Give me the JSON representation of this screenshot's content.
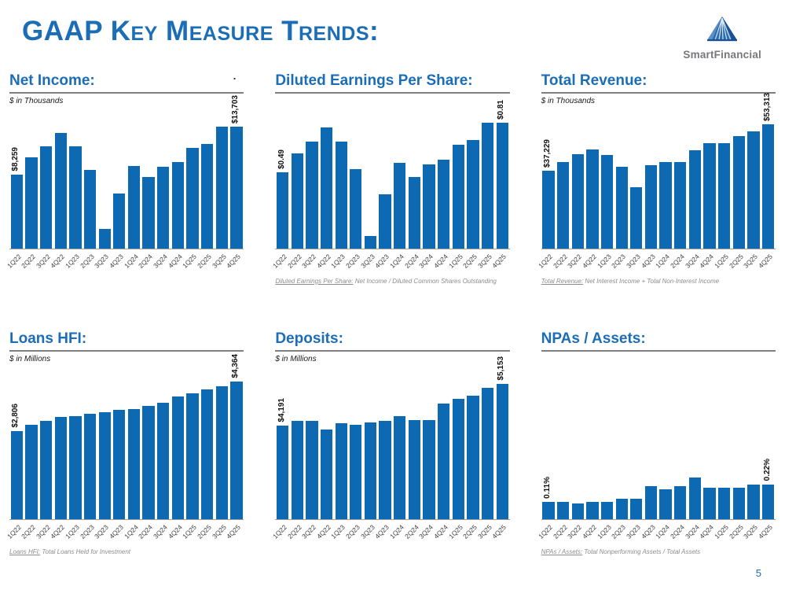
{
  "page": {
    "title": "GAAP Key Measure Trends:",
    "page_number": "5",
    "stray_dot": "."
  },
  "logo": {
    "text": "SmartFinancial"
  },
  "colors": {
    "bar_blue": "#0D6AB2",
    "title_blue": "#1B6DB6",
    "underline_gray": "#7F7F7F",
    "footnote_gray": "#8C8C8C",
    "logo_text_gray": "#77787B"
  },
  "chart_data": [
    {
      "type": "bar",
      "title": "Net Income:",
      "units": "$ in Thousands",
      "categories": [
        "1Q22",
        "2Q22",
        "3Q22",
        "4Q22",
        "1Q23",
        "2Q23",
        "3Q23",
        "4Q23",
        "1Q24",
        "2Q24",
        "3Q24",
        "4Q24",
        "1Q25",
        "2Q25",
        "3Q25",
        "4Q25"
      ],
      "values": [
        8259,
        10200,
        11500,
        13000,
        11500,
        8800,
        2200,
        6200,
        9300,
        8000,
        9200,
        9700,
        11300,
        11700,
        13700,
        13703
      ],
      "first_label": "$8,259",
      "last_label": "$13,703",
      "ylim": [
        0,
        14300
      ],
      "grid": false,
      "legend": "none"
    },
    {
      "type": "bar",
      "title": "Diluted Earnings Per Share:",
      "units": "",
      "categories": [
        "1Q22",
        "2Q22",
        "3Q22",
        "4Q22",
        "1Q23",
        "2Q23",
        "3Q23",
        "4Q23",
        "1Q24",
        "2Q24",
        "3Q24",
        "4Q24",
        "1Q25",
        "2Q25",
        "3Q25",
        "4Q25"
      ],
      "values": [
        0.49,
        0.61,
        0.69,
        0.78,
        0.69,
        0.51,
        0.08,
        0.35,
        0.55,
        0.46,
        0.54,
        0.57,
        0.67,
        0.7,
        0.81,
        0.81
      ],
      "first_label": "$0.49",
      "last_label": "$0.81",
      "ylim": [
        0,
        0.82
      ],
      "grid": false,
      "legend": "none",
      "footnote_lead": "Diluted Earnings Per Share:",
      "footnote_rest": " Net Income / Diluted Common Shares Outstanding"
    },
    {
      "type": "bar",
      "title": "Total Revenue:",
      "units": "$ in Thousands",
      "categories": [
        "1Q22",
        "2Q22",
        "3Q22",
        "4Q22",
        "1Q23",
        "2Q23",
        "3Q23",
        "4Q23",
        "1Q24",
        "2Q24",
        "3Q24",
        "4Q24",
        "1Q25",
        "2Q25",
        "3Q25",
        "4Q25"
      ],
      "values": [
        37229,
        40200,
        42900,
        44600,
        42700,
        38600,
        31500,
        39100,
        40300,
        40300,
        44200,
        46700,
        46800,
        49200,
        50900,
        53313
      ],
      "first_label": "$37,229",
      "last_label": "$53,313",
      "ylim": [
        10000,
        54500
      ],
      "grid": false,
      "legend": "none",
      "footnote_lead": "Total Revenue:",
      "footnote_rest": " Net Interest Income + Total Non-Interest Income"
    },
    {
      "type": "bar",
      "title": "Loans HFI:",
      "units": "$ in Millions",
      "categories": [
        "1Q22",
        "2Q22",
        "3Q22",
        "4Q22",
        "1Q23",
        "2Q23",
        "3Q23",
        "4Q23",
        "1Q24",
        "2Q24",
        "3Q24",
        "4Q24",
        "1Q25",
        "2Q25",
        "3Q25",
        "4Q25"
      ],
      "values": [
        2806,
        3010,
        3130,
        3260,
        3280,
        3350,
        3400,
        3470,
        3490,
        3590,
        3710,
        3910,
        4000,
        4120,
        4220,
        4364
      ],
      "first_label": "$2,806",
      "last_label": "$4,364",
      "ylim": [
        0,
        4450
      ],
      "grid": false,
      "legend": "none",
      "footnote_lead": "Loans HFI:",
      "footnote_rest": " Total Loans Held for Investment"
    },
    {
      "type": "bar",
      "title": "Deposits:",
      "units": "$ in Millions",
      "categories": [
        "1Q22",
        "2Q22",
        "3Q22",
        "4Q22",
        "1Q23",
        "2Q23",
        "3Q23",
        "4Q23",
        "1Q24",
        "2Q24",
        "3Q24",
        "4Q24",
        "1Q25",
        "2Q25",
        "3Q25",
        "4Q25"
      ],
      "values": [
        4191,
        4290,
        4300,
        4090,
        4240,
        4200,
        4260,
        4290,
        4410,
        4320,
        4320,
        4700,
        4810,
        4890,
        5060,
        5153
      ],
      "first_label": "$4,191",
      "last_label": "$5,153",
      "ylim": [
        2000,
        5270
      ],
      "grid": false,
      "legend": "none"
    },
    {
      "type": "bar",
      "title": "NPAs / Assets:",
      "units": "",
      "categories": [
        "1Q22",
        "2Q22",
        "3Q22",
        "4Q22",
        "1Q23",
        "2Q23",
        "3Q23",
        "4Q23",
        "1Q24",
        "2Q24",
        "3Q24",
        "4Q24",
        "1Q25",
        "2Q25",
        "3Q25",
        "4Q25"
      ],
      "values": [
        0.11,
        0.11,
        0.1,
        0.11,
        0.11,
        0.13,
        0.13,
        0.21,
        0.19,
        0.21,
        0.27,
        0.2,
        0.2,
        0.2,
        0.22,
        0.22
      ],
      "first_label": "0.11%",
      "last_label": "0.22%",
      "ylim": [
        0,
        0.9
      ],
      "grid": false,
      "legend": "none",
      "footnote_lead": "NPAs / Assets:",
      "footnote_rest": " Total Nonperforming Assets / Total Assets"
    }
  ]
}
